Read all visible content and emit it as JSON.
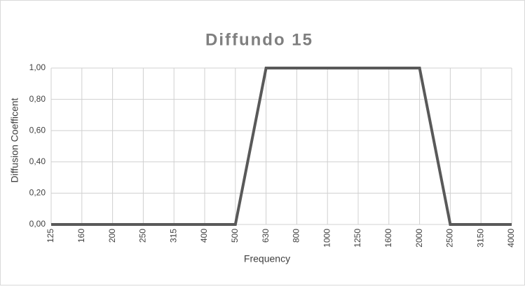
{
  "chart_data": {
    "type": "line",
    "title": "Diffundo 15",
    "x_label": "Frequency",
    "y_label": "Diffusion Coefficent",
    "categories": [
      "125",
      "160",
      "200",
      "250",
      "315",
      "400",
      "500",
      "630",
      "800",
      "1000",
      "1250",
      "1600",
      "2000",
      "2500",
      "3150",
      "4000"
    ],
    "values": [
      0,
      0,
      0,
      0,
      0,
      0,
      0,
      1,
      1,
      1,
      1,
      1,
      1,
      0,
      0,
      0
    ],
    "color": "#595959",
    "ylim": [
      0,
      1
    ],
    "yticks": [
      {
        "value": 0,
        "label": "0,00"
      },
      {
        "value": 0.2,
        "label": "0,20"
      },
      {
        "value": 0.4,
        "label": "0,40"
      },
      {
        "value": 0.6,
        "label": "0,60"
      },
      {
        "value": 0.8,
        "label": "0,80"
      },
      {
        "value": 1,
        "label": "1,00"
      }
    ],
    "grid": true
  }
}
